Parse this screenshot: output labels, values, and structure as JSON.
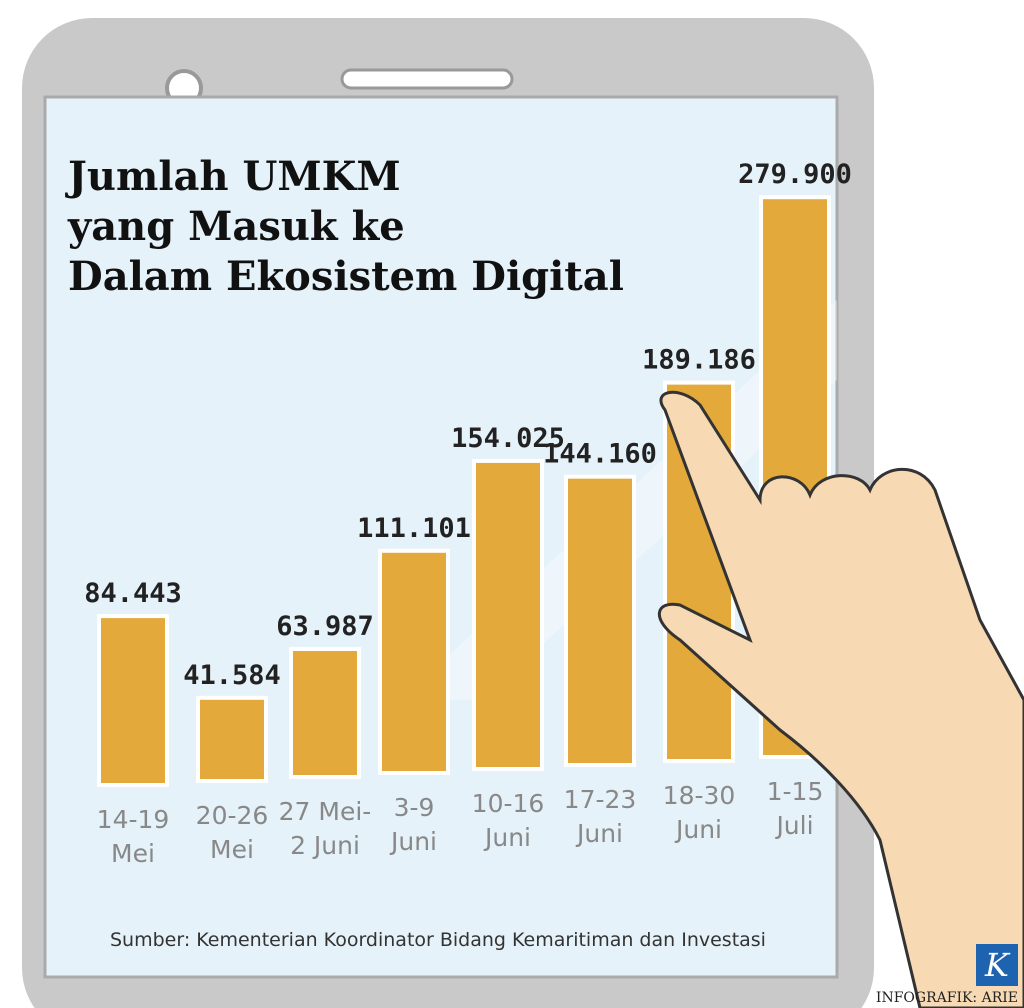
{
  "chart_data": {
    "type": "bar",
    "title": [
      "Jumlah UMKM",
      "yang Masuk ke",
      "Dalam Ekosistem Digital"
    ],
    "categories": [
      [
        "14-19",
        "Mei"
      ],
      [
        "20-26",
        "Mei"
      ],
      [
        "27 Mei-",
        "2 Juni"
      ],
      [
        "3-9",
        "Juni"
      ],
      [
        "10-16",
        "Juni"
      ],
      [
        "17-23",
        "Juni"
      ],
      [
        "18-30",
        "Juni"
      ],
      [
        "1-15",
        "Juli"
      ]
    ],
    "values": [
      84443,
      41584,
      63987,
      111101,
      154025,
      144160,
      189186,
      279900
    ],
    "value_labels": [
      "84.443",
      "41.584",
      "63.987",
      "111.101",
      "154.025",
      "144.160",
      "189.186",
      "279.900"
    ],
    "color": "#e3a93a",
    "source": "Sumber: Kementerian Koordinator Bidang Kemaritiman dan Investasi",
    "credit": "INFOGRAFIK: ARIE",
    "logo": "K"
  }
}
